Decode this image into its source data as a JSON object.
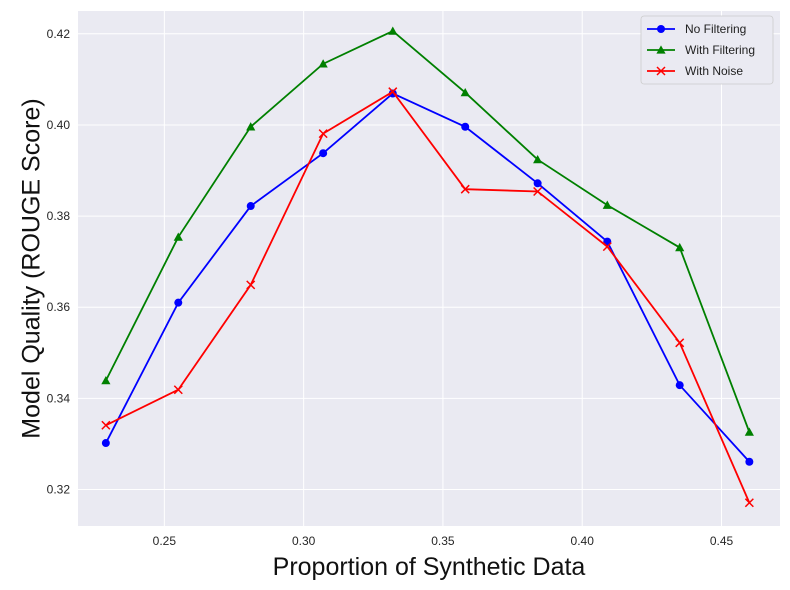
{
  "chart_data": {
    "type": "line",
    "xlabel": "Proportion of Synthetic Data",
    "ylabel": "Model Quality (ROUGE Score)",
    "xlim": [
      0.219,
      0.471
    ],
    "ylim": [
      0.312,
      0.425
    ],
    "x_ticks": [
      0.25,
      0.3,
      0.35,
      0.4,
      0.45
    ],
    "x_tick_labels": [
      "0.25",
      "0.30",
      "0.35",
      "0.40",
      "0.45"
    ],
    "y_ticks": [
      0.32,
      0.34,
      0.36,
      0.38,
      0.4,
      0.42
    ],
    "y_tick_labels": [
      "0.32",
      "0.34",
      "0.36",
      "0.38",
      "0.40",
      "0.42"
    ],
    "grid": true,
    "legend_position": "top-right",
    "x": [
      0.229,
      0.255,
      0.281,
      0.307,
      0.332,
      0.358,
      0.384,
      0.409,
      0.435,
      0.46
    ],
    "series": [
      {
        "name": "No Filtering",
        "color": "#0000ff",
        "marker": "circle",
        "values": [
          0.3302,
          0.361,
          0.3822,
          0.3938,
          0.4069,
          0.3996,
          0.3872,
          0.3744,
          0.3429,
          0.3261
        ]
      },
      {
        "name": "With Filtering",
        "color": "#008000",
        "marker": "triangle",
        "values": [
          0.3439,
          0.3754,
          0.3996,
          0.4134,
          0.4206,
          0.4071,
          0.3924,
          0.3824,
          0.3731,
          0.3326
        ]
      },
      {
        "name": "With Noise",
        "color": "#ff0000",
        "marker": "x",
        "values": [
          0.3341,
          0.3419,
          0.3649,
          0.3981,
          0.4073,
          0.3859,
          0.3854,
          0.3733,
          0.3522,
          0.3171
        ]
      }
    ]
  }
}
